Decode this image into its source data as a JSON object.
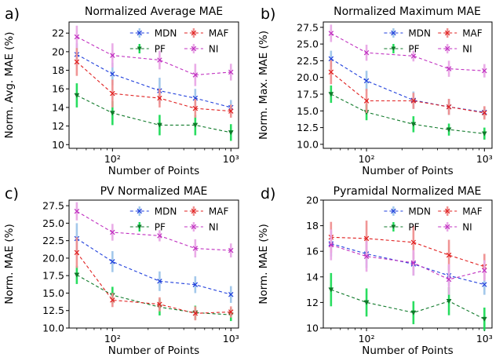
{
  "chart_data": [
    {
      "type": "line",
      "panel_label": "a)",
      "title": "Normalized Average MAE",
      "xlabel": "Number of Points",
      "ylabel": "Norm. Avg. MAE (%)",
      "xscale": "log",
      "x": [
        50,
        100,
        250,
        500,
        1000
      ],
      "ylim": [
        9.6,
        23.2
      ],
      "yticks": [
        10,
        12,
        14,
        16,
        18,
        20,
        22
      ],
      "ytick_labels": [
        "10",
        "12",
        "14",
        "16",
        "18",
        "20",
        "22"
      ],
      "xticks": [
        100,
        1000
      ],
      "xtick_labels": [
        "10²",
        "10³"
      ],
      "legend_loc": "top-right",
      "series": [
        {
          "name": "MDN",
          "color": "#1f3fdc",
          "err_color": "#9fc6ea",
          "marker": "x",
          "values": [
            19.7,
            17.6,
            15.8,
            15.0,
            14.0
          ],
          "errors": [
            1.2,
            1.2,
            1.4,
            1.0,
            0.8
          ]
        },
        {
          "name": "PF",
          "color": "#0f7a2a",
          "err_color": "#1edc58",
          "marker": "v",
          "values": [
            15.3,
            13.4,
            12.1,
            12.1,
            11.3
          ],
          "errors": [
            1.3,
            1.3,
            1.1,
            1.1,
            0.9
          ]
        },
        {
          "name": "MAF",
          "color": "#e02020",
          "err_color": "#f09090",
          "marker": "x",
          "values": [
            18.9,
            15.5,
            15.0,
            13.9,
            13.6
          ],
          "errors": [
            1.5,
            1.5,
            1.0,
            1.0,
            0.7
          ]
        },
        {
          "name": "NI",
          "color": "#c030c0",
          "err_color": "#e9a8e6",
          "marker": "x",
          "values": [
            21.6,
            19.6,
            19.1,
            17.5,
            17.8
          ],
          "errors": [
            1.2,
            1.3,
            1.0,
            1.2,
            0.9
          ]
        }
      ]
    },
    {
      "type": "line",
      "panel_label": "b)",
      "title": "Normalized Maximum MAE",
      "xlabel": "Number of Points",
      "ylabel": "Norm. Max. MAE (%)",
      "xscale": "log",
      "x": [
        50,
        100,
        250,
        500,
        1000
      ],
      "ylim": [
        9.4,
        28.3
      ],
      "yticks": [
        10,
        12.5,
        15,
        17.5,
        20,
        22.5,
        25,
        27.5
      ],
      "ytick_labels": [
        "10.0",
        "12.5",
        "15.0",
        "17.5",
        "20.0",
        "22.5",
        "25.0",
        "27.5"
      ],
      "xticks": [
        100,
        1000
      ],
      "xtick_labels": [
        "10²",
        "10³"
      ],
      "legend_loc": "top-right",
      "series": [
        {
          "name": "MDN",
          "color": "#1f3fdc",
          "err_color": "#9fc6ea",
          "marker": "x",
          "values": [
            22.8,
            19.5,
            16.6,
            15.6,
            14.8
          ],
          "errors": [
            1.2,
            1.5,
            1.3,
            1.2,
            0.8
          ]
        },
        {
          "name": "PF",
          "color": "#0f7a2a",
          "err_color": "#1edc58",
          "marker": "v",
          "values": [
            17.5,
            14.8,
            13.0,
            12.2,
            11.6
          ],
          "errors": [
            1.3,
            1.2,
            1.2,
            0.9,
            0.9
          ]
        },
        {
          "name": "MAF",
          "color": "#e02020",
          "err_color": "#f09090",
          "marker": "x",
          "values": [
            20.8,
            16.5,
            16.5,
            15.6,
            14.7
          ],
          "errors": [
            1.8,
            1.8,
            1.2,
            1.2,
            1.0
          ]
        },
        {
          "name": "NI",
          "color": "#c030c0",
          "err_color": "#e9a8e6",
          "marker": "x",
          "values": [
            26.6,
            23.7,
            23.2,
            21.3,
            21.0
          ],
          "errors": [
            1.3,
            1.2,
            0.8,
            1.2,
            1.0
          ]
        }
      ]
    },
    {
      "type": "line",
      "panel_label": "c)",
      "title": "PV Normalized MAE",
      "xlabel": "Number of Points",
      "ylabel": "Norm. MAE (%)",
      "xscale": "log",
      "x": [
        50,
        100,
        250,
        500,
        1000
      ],
      "ylim": [
        10,
        28.3
      ],
      "yticks": [
        10,
        12.5,
        15,
        17.5,
        20,
        22.5,
        25,
        27.5
      ],
      "ytick_labels": [
        "10.0",
        "12.5",
        "15.0",
        "17.5",
        "20.0",
        "22.5",
        "25.0",
        "27.5"
      ],
      "xticks": [
        100,
        1000
      ],
      "xtick_labels": [
        "10²",
        "10³"
      ],
      "legend_loc": "top-right",
      "series": [
        {
          "name": "MDN",
          "color": "#1f3fdc",
          "err_color": "#9fc6ea",
          "marker": "x",
          "values": [
            22.8,
            19.5,
            16.7,
            16.2,
            14.8
          ],
          "errors": [
            2.2,
            1.5,
            1.4,
            1.2,
            1.2
          ]
        },
        {
          "name": "PF",
          "color": "#0f7a2a",
          "err_color": "#1edc58",
          "marker": "v",
          "values": [
            17.6,
            14.7,
            13.0,
            12.2,
            11.9
          ],
          "errors": [
            1.3,
            1.2,
            1.2,
            1.0,
            0.9
          ]
        },
        {
          "name": "MAF",
          "color": "#e02020",
          "err_color": "#f09090",
          "marker": "x",
          "values": [
            20.8,
            14.0,
            13.4,
            12.1,
            12.3
          ],
          "errors": [
            2.2,
            1.0,
            1.0,
            1.0,
            0.8
          ]
        },
        {
          "name": "NI",
          "color": "#c030c0",
          "err_color": "#e9a8e6",
          "marker": "x",
          "values": [
            26.7,
            23.7,
            23.2,
            21.4,
            21.1
          ],
          "errors": [
            1.3,
            1.2,
            0.8,
            1.3,
            1.0
          ]
        }
      ]
    },
    {
      "type": "line",
      "panel_label": "d)",
      "title": "Pyramidal Normalized MAE",
      "xlabel": "Number of Points",
      "ylabel": "Norm. MAE (%)",
      "xscale": "log",
      "x": [
        50,
        100,
        250,
        500,
        1000
      ],
      "ylim": [
        10,
        20
      ],
      "yticks": [
        10,
        12,
        14,
        16,
        18,
        20
      ],
      "ytick_labels": [
        "10",
        "12",
        "14",
        "16",
        "18",
        "20"
      ],
      "xticks": [
        100,
        1000
      ],
      "xtick_labels": [
        "10²",
        "10³"
      ],
      "legend_loc": "top-right",
      "series": [
        {
          "name": "MDN",
          "color": "#1f3fdc",
          "err_color": "#9fc6ea",
          "marker": "x",
          "values": [
            16.6,
            15.8,
            15.0,
            14.1,
            13.4
          ],
          "errors": [
            1.0,
            1.1,
            0.9,
            0.8,
            0.8
          ]
        },
        {
          "name": "PF",
          "color": "#0f7a2a",
          "err_color": "#1edc58",
          "marker": "v",
          "values": [
            13.0,
            12.0,
            11.2,
            12.1,
            10.7
          ],
          "errors": [
            1.3,
            1.1,
            0.9,
            1.1,
            0.9
          ]
        },
        {
          "name": "MAF",
          "color": "#e02020",
          "err_color": "#f09090",
          "marker": "x",
          "values": [
            17.1,
            17.0,
            16.7,
            15.7,
            14.8
          ],
          "errors": [
            1.2,
            1.4,
            1.3,
            1.2,
            1.0
          ]
        },
        {
          "name": "NI",
          "color": "#c030c0",
          "err_color": "#e9a8e6",
          "marker": "x",
          "values": [
            16.5,
            15.6,
            15.1,
            13.8,
            14.5
          ],
          "errors": [
            1.2,
            1.2,
            1.0,
            1.2,
            0.8
          ]
        }
      ]
    }
  ]
}
